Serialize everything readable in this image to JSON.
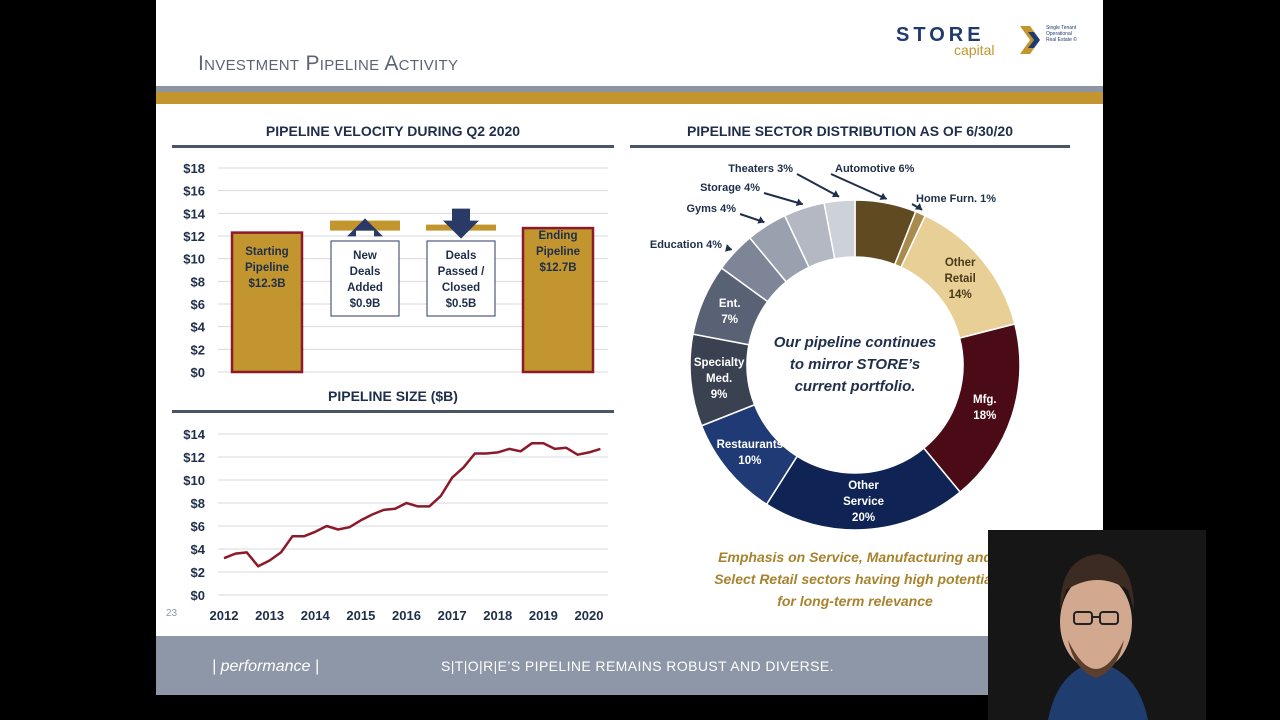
{
  "slide": {
    "title": "Investment Pipeline Activity",
    "logo": {
      "main": "STORE",
      "sub": "capital",
      "tagline": "Single Tenant Operational Real Estate ©"
    },
    "page_number": "23",
    "footer": {
      "left": "| performance |",
      "right": "S|T|O|R|E’S PIPELINE REMAINS ROBUST AND DIVERSE."
    },
    "colors": {
      "gold": "#c2952e",
      "navy": "#1f2e4a",
      "maroon": "#8b1a2b"
    }
  },
  "velocity": {
    "title": "PIPELINE VELOCITY DURING Q2 2020",
    "ticks": [
      "$18",
      "$16",
      "$14",
      "$12",
      "$10",
      "$8",
      "$6",
      "$4",
      "$2",
      "$0"
    ],
    "boxes": [
      {
        "lines": [
          "Starting",
          "Pipeline",
          "$12.3B"
        ]
      },
      {
        "lines": [
          "New",
          "Deals",
          "Added",
          "$0.9B"
        ]
      },
      {
        "lines": [
          "Deals",
          "Passed /",
          "Closed",
          "$0.5B"
        ]
      },
      {
        "lines": [
          "Ending",
          "Pipeline",
          "$12.7B"
        ]
      }
    ]
  },
  "size_chart": {
    "title": "PIPELINE SIZE ($B)"
  },
  "sector": {
    "title": "PIPELINE SECTOR DISTRIBUTION AS OF  6/30/20",
    "center_text": [
      "Our pipeline continues",
      "to mirror STORE’s",
      "current portfolio."
    ],
    "emphasis": [
      "Emphasis on Service, Manufacturing and",
      "Select Retail sectors having high potential",
      "for long-term relevance"
    ]
  },
  "chart_data": [
    {
      "type": "bar",
      "title": "PIPELINE VELOCITY DURING Q2 2020",
      "categories": [
        "Starting Pipeline",
        "New Deals Added",
        "Deals Passed / Closed",
        "Ending Pipeline"
      ],
      "values": [
        12.3,
        0.9,
        0.5,
        12.7
      ],
      "ylim": [
        0,
        18
      ],
      "ylabel": "$B"
    },
    {
      "type": "line",
      "title": "PIPELINE SIZE ($B)",
      "x_ticks": [
        "2012",
        "2013",
        "2014",
        "2015",
        "2016",
        "2017",
        "2018",
        "2019",
        "2020"
      ],
      "y_ticks": [
        "$14",
        "$12",
        "$10",
        "$8",
        "$6",
        "$4",
        "$2",
        "$0"
      ],
      "ylim": [
        0,
        14
      ],
      "x": [
        2012.0,
        2012.25,
        2012.5,
        2012.75,
        2013.0,
        2013.25,
        2013.5,
        2013.75,
        2014.0,
        2014.25,
        2014.5,
        2014.75,
        2015.0,
        2015.25,
        2015.5,
        2015.75,
        2016.0,
        2016.25,
        2016.5,
        2016.75,
        2017.0,
        2017.25,
        2017.5,
        2017.75,
        2018.0,
        2018.25,
        2018.5,
        2018.75,
        2019.0,
        2019.25,
        2019.5,
        2019.75,
        2020.0,
        2020.25
      ],
      "values": [
        3.2,
        3.6,
        3.7,
        2.5,
        3.0,
        3.7,
        5.1,
        5.1,
        5.5,
        6.0,
        5.7,
        5.9,
        6.5,
        7.0,
        7.4,
        7.5,
        8.0,
        7.7,
        7.7,
        8.6,
        10.2,
        11.1,
        12.3,
        12.3,
        12.4,
        12.7,
        12.5,
        13.2,
        13.2,
        12.7,
        12.8,
        12.2,
        12.4,
        12.7
      ],
      "series_color": "#8b1a2b"
    },
    {
      "type": "pie",
      "title": "PIPELINE SECTOR DISTRIBUTION AS OF  6/30/20",
      "slices": [
        {
          "label": "Automotive 6%",
          "short": "",
          "value": 6,
          "color": "#5f4a22"
        },
        {
          "label": "Home Furn. 1%",
          "short": "",
          "value": 1,
          "color": "#a98b4e"
        },
        {
          "label": "Other Retail 14%",
          "short": "Other|Retail|14%",
          "value": 14,
          "color": "#e8cf96"
        },
        {
          "label": "Mfg. 18%",
          "short": "Mfg.|18%",
          "value": 18,
          "color": "#4a0b16"
        },
        {
          "label": "Other Service 20%",
          "short": "Other|Service|20%",
          "value": 20,
          "color": "#0f2455"
        },
        {
          "label": "Restaurants 10%",
          "short": "Restaurants|10%",
          "value": 10,
          "color": "#1f3a74"
        },
        {
          "label": "Specialty Med. 9%",
          "short": "Specialty|Med.|9%",
          "value": 9,
          "color": "#3a4151"
        },
        {
          "label": "Ent. 7%",
          "short": "Ent.|7%",
          "value": 7,
          "color": "#596274"
        },
        {
          "label": "Education 4%",
          "short": "",
          "value": 4,
          "color": "#7d8596"
        },
        {
          "label": "Gyms 4%",
          "short": "",
          "value": 4,
          "color": "#9aa1ae"
        },
        {
          "label": "Storage 4%",
          "short": "",
          "value": 4,
          "color": "#b3b8c3"
        },
        {
          "label": "Theaters 3%",
          "short": "",
          "value": 3,
          "color": "#cdd1d8"
        }
      ]
    }
  ]
}
